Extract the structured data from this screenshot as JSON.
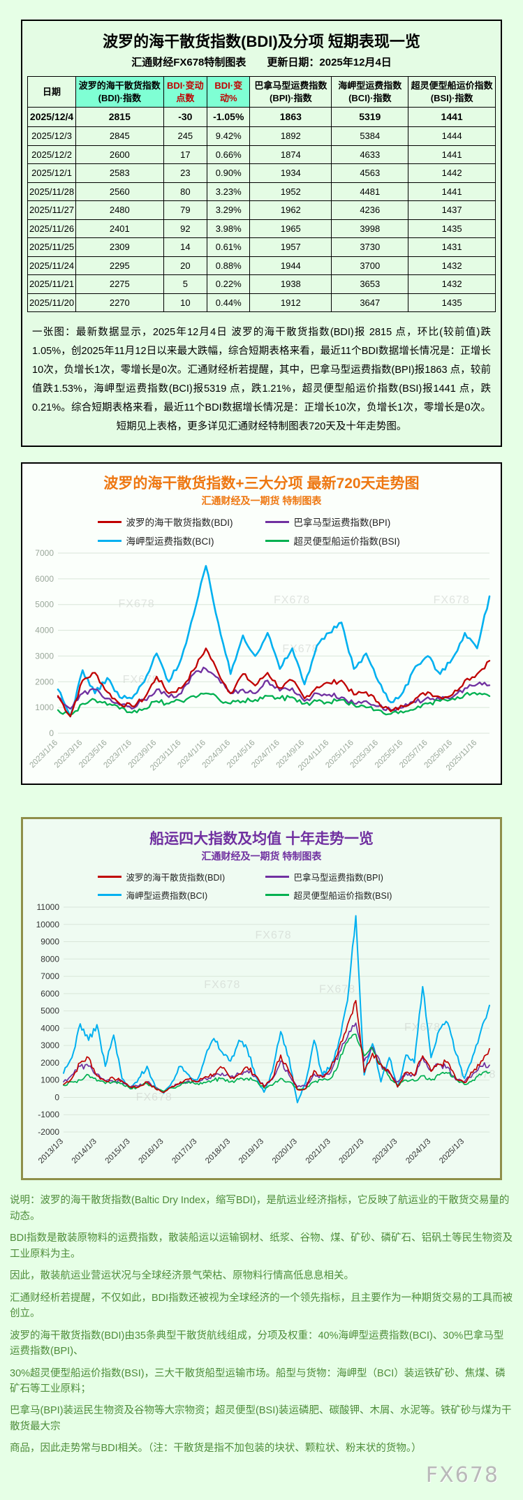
{
  "page": {
    "watermark": "FX678"
  },
  "colors": {
    "bdi": "#c00000",
    "bpi": "#7030a0",
    "bci": "#00b0f0",
    "bsi": "#00b050",
    "table_header_green": "#7fffd4",
    "title_orange": "#ee7711",
    "title_purple": "#7030a0",
    "note_green": "#4e8c3a"
  },
  "summary_table": {
    "title": "波罗的海干散货指数(BDI)及分项  短期表现一览",
    "subtitle": "汇通财经FX678特制图表　　更新日期：2025年12月4日",
    "columns": [
      "日期",
      "波罗的海干散货指数(BDI)·指数",
      "BDI·变动点数",
      "BDI·变动%",
      "巴拿马型运费指数(BPI)·指数",
      "海岬型运费指数(BCI)·指数",
      "超灵便型船运价指数(BSI)·指数"
    ],
    "rows": [
      [
        "2025/12/4",
        "2815",
        "-30",
        "-1.05%",
        "1863",
        "5319",
        "1441"
      ],
      [
        "2025/12/3",
        "2845",
        "245",
        "9.42%",
        "1892",
        "5384",
        "1444"
      ],
      [
        "2025/12/2",
        "2600",
        "17",
        "0.66%",
        "1874",
        "4633",
        "1441"
      ],
      [
        "2025/12/1",
        "2583",
        "23",
        "0.90%",
        "1934",
        "4563",
        "1442"
      ],
      [
        "2025/11/28",
        "2560",
        "80",
        "3.23%",
        "1952",
        "4481",
        "1441"
      ],
      [
        "2025/11/27",
        "2480",
        "79",
        "3.29%",
        "1962",
        "4236",
        "1437"
      ],
      [
        "2025/11/26",
        "2401",
        "92",
        "3.98%",
        "1965",
        "3998",
        "1435"
      ],
      [
        "2025/11/25",
        "2309",
        "14",
        "0.61%",
        "1957",
        "3730",
        "1431"
      ],
      [
        "2025/11/24",
        "2295",
        "20",
        "0.88%",
        "1944",
        "3700",
        "1432"
      ],
      [
        "2025/11/21",
        "2275",
        "5",
        "0.22%",
        "1938",
        "3653",
        "1432"
      ],
      [
        "2025/11/20",
        "2270",
        "10",
        "0.44%",
        "1912",
        "3647",
        "1435"
      ]
    ],
    "note": "一张图：最新数据显示，2025年12月4日 波罗的海干散货指数(BDI)报 2815 点，环比(较前值)跌1.05%，创2025年11月12日以来最大跌幅，综合短期表格来看，最近11个BDI数据增长情况是：正增长10次，负增长1次，零增长是0次。汇通财经析若提醒，其中，巴拿马型运费指数(BPI)报1863 点，较前值跌1.53%，海岬型运费指数(BCI)报5319 点，跌1.21%，超灵便型船运价指数(BSI)报1441 点，跌0.21%。综合短期表格来看，最近11个BDI数据增长情况是：正增长10次，负增长1次，零增长是0次。短期见上表格，更多详见汇通财经特制图表720天及十年走势图。"
  },
  "chart_data": [
    {
      "id": "trend720",
      "type": "line",
      "title": "波罗的海干散货指数+三大分项  最新720天走势图",
      "subtitle": "汇通财经及一期货 特制图表",
      "ylim": [
        0,
        7000
      ],
      "ytick": 1000,
      "grid": true,
      "legend_position": "top",
      "label_every_points": 2,
      "x_labels": [
        "2023/1/16",
        "2023/3/16",
        "2023/5/16",
        "2023/7/16",
        "2023/9/16",
        "2023/11/16",
        "2024/1/16",
        "2024/3/16",
        "2024/5/16",
        "2024/7/16",
        "2024/9/16",
        "2024/11/16",
        "2025/1/16",
        "2025/3/16",
        "2025/5/16",
        "2025/7/16",
        "2025/9/16",
        "2025/11/16"
      ],
      "series": [
        {
          "name": "波罗的海干散货指数(BDI)",
          "color": "#c00000",
          "values": [
            1450,
            650,
            2050,
            2350,
            1600,
            1150,
            1050,
            1350,
            2200,
            1550,
            1750,
            2450,
            3300,
            2350,
            1550,
            2300,
            1850,
            2350,
            1750,
            2050,
            1350,
            1800,
            1950,
            2050,
            1500,
            1600,
            1200,
            850,
            1050,
            1350,
            1600,
            1400,
            1500,
            2050,
            2300,
            2815
          ]
        },
        {
          "name": "巴拿马型运费指数(BPI)",
          "color": "#7030a0",
          "values": [
            1400,
            950,
            1550,
            1700,
            1350,
            1100,
            950,
            1300,
            1700,
            1400,
            1550,
            2300,
            2500,
            2150,
            1550,
            1700,
            1550,
            2050,
            1650,
            1750,
            1250,
            1550,
            1500,
            1400,
            1150,
            1250,
            1050,
            900,
            1000,
            1200,
            1400,
            1300,
            1400,
            1750,
            1900,
            1863
          ]
        },
        {
          "name": "海岬型运费指数(BCI)",
          "color": "#00b0f0",
          "values": [
            1700,
            650,
            2450,
            1550,
            2150,
            1400,
            1350,
            2000,
            3100,
            2000,
            2900,
            4600,
            6500,
            4300,
            2300,
            3800,
            3000,
            3900,
            2500,
            3300,
            1900,
            3400,
            3900,
            4300,
            2500,
            3100,
            2000,
            1200,
            1600,
            2600,
            3000,
            2300,
            2900,
            3900,
            3300,
            5320
          ]
        },
        {
          "name": "超灵便型船运价指数(BSI)",
          "color": "#00b050",
          "values": [
            900,
            700,
            1150,
            1300,
            1100,
            950,
            800,
            950,
            1250,
            1150,
            1250,
            1450,
            1550,
            1350,
            1150,
            1250,
            1300,
            1450,
            1350,
            1400,
            1150,
            1250,
            1200,
            1300,
            1100,
            1000,
            900,
            750,
            800,
            950,
            1150,
            1250,
            1350,
            1500,
            1500,
            1441
          ]
        }
      ],
      "watermark": "FX678",
      "watermark_positions": [
        [
          0.14,
          0.3
        ],
        [
          0.5,
          0.28
        ],
        [
          0.87,
          0.28
        ],
        [
          0.52,
          0.55
        ],
        [
          0.15,
          0.72
        ]
      ]
    },
    {
      "id": "trend10y",
      "type": "line",
      "title": "船运四大指数及均值 十年走势一览",
      "subtitle": "汇通财经及一期货 特制图表",
      "ylim": [
        -2000,
        11000
      ],
      "ytick": 1000,
      "grid": true,
      "legend_position": "top",
      "label_every_points": 4,
      "x_labels": [
        "2013/1/3",
        "2014/1/3",
        "2015/1/3",
        "2016/1/3",
        "2017/1/3",
        "2018/1/3",
        "2019/1/3",
        "2020/1/3",
        "2021/1/3",
        "2022/1/3",
        "2023/1/3",
        "2024/1/3",
        "2025/1/3"
      ],
      "series": [
        {
          "name": "波罗的海干散货指数(BDI)",
          "color": "#c00000",
          "values": [
            750,
            1100,
            2000,
            2300,
            1250,
            950,
            1100,
            950,
            600,
            600,
            900,
            500,
            290,
            620,
            900,
            1050,
            900,
            1200,
            1350,
            1700,
            1100,
            1350,
            1750,
            1270,
            600,
            1100,
            2450,
            1500,
            450,
            520,
            1550,
            1200,
            1700,
            2900,
            4200,
            5600,
            1450,
            2550,
            1950,
            1500,
            600,
            1450,
            1250,
            2400,
            1500,
            1900,
            2050,
            1050,
            850,
            1450,
            2100,
            2815
          ]
        },
        {
          "name": "巴拿马型运费指数(BPI)",
          "color": "#7030a0",
          "values": [
            900,
            1300,
            1800,
            1800,
            1350,
            950,
            900,
            950,
            600,
            650,
            900,
            550,
            300,
            650,
            800,
            950,
            900,
            1100,
            1200,
            1400,
            1200,
            1350,
            1550,
            1250,
            650,
            1050,
            2100,
            1300,
            600,
            650,
            1350,
            1150,
            1450,
            2600,
            3500,
            4300,
            2100,
            2900,
            1900,
            1400,
            900,
            1400,
            1250,
            2300,
            1550,
            1900,
            1750,
            1000,
            900,
            1350,
            1800,
            1863
          ]
        },
        {
          "name": "海岬型运费指数(BCI)",
          "color": "#00b0f0",
          "values": [
            1400,
            2300,
            4250,
            3300,
            4200,
            1800,
            3600,
            1100,
            500,
            1100,
            1800,
            600,
            250,
            900,
            1800,
            1300,
            1000,
            2400,
            3400,
            2600,
            2100,
            3300,
            2800,
            1200,
            300,
            1500,
            3800,
            2300,
            -300,
            900,
            3300,
            1300,
            1800,
            3300,
            5600,
            10500,
            1300,
            3100,
            900,
            2300,
            600,
            2450,
            2000,
            6400,
            2300,
            3900,
            4300,
            2500,
            1100,
            2400,
            3900,
            5320
          ]
        },
        {
          "name": "超灵便型船运价指数(BSI)",
          "color": "#00b050",
          "values": [
            700,
            900,
            1000,
            1300,
            950,
            800,
            900,
            800,
            500,
            600,
            800,
            550,
            350,
            550,
            700,
            900,
            800,
            850,
            1000,
            1100,
            900,
            1050,
            1100,
            950,
            550,
            700,
            1100,
            900,
            450,
            500,
            900,
            1000,
            1100,
            2100,
            3200,
            3650,
            2400,
            2800,
            1900,
            1200,
            700,
            1000,
            950,
            1250,
            1000,
            1300,
            1400,
            1100,
            750,
            1000,
            1300,
            1441
          ]
        }
      ],
      "watermark": "FX678",
      "watermark_positions": [
        [
          0.45,
          0.14
        ],
        [
          0.33,
          0.36
        ],
        [
          0.6,
          0.38
        ],
        [
          0.17,
          0.86
        ],
        [
          0.8,
          0.55
        ],
        [
          0.93,
          0.76
        ]
      ]
    }
  ],
  "footer_notes": [
    "说明：波罗的海干散货指数(Baltic Dry Index，缩写BDI)，是航运业经济指标，它反映了航运业的干散货交易量的动态。",
    "BDI指数是散装原物料的运费指数，散装船运以运输钢材、纸浆、谷物、煤、矿砂、磷矿石、铝矾土等民生物资及工业原料为主。",
    "因此，散装航运业营运状况与全球经济景气荣枯、原物料行情高低息息相关。",
    "汇通财经析若提醒，不仅如此，BDI指数还被视为全球经济的一个领先指标，且主要作为一种期货交易的工具而被创立。",
    "波罗的海干散货指数(BDI)由35条典型干散货航线组成，分项及权重：40%海岬型运费指数(BCI)、30%巴拿马型运费指数(BPI)、",
    "30%超灵便型船运价指数(BSI)，三大干散货船型运输市场。船型与货物：海岬型（BCI）装运铁矿砂、焦煤、磷矿石等工业原料；",
    "巴拿马(BPI)装运民生物资及谷物等大宗物资；超灵便型(BSI)装运磷肥、碳酸钾、木屑、水泥等。铁矿砂与煤为干散货最大宗",
    "商品，因此走势常与BDI相关。（注：干散货是指不加包装的块状、颗粒状、粉末状的货物。）"
  ]
}
